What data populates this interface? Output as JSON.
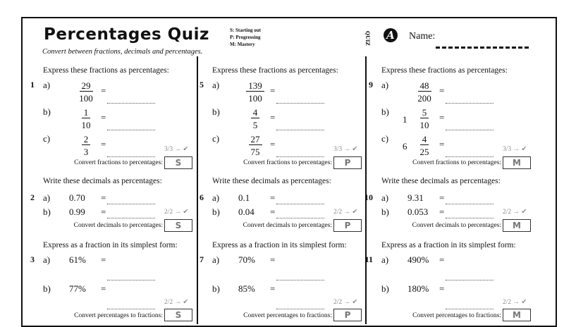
{
  "title": "Percentages Quiz",
  "subtitle": "Convert between fractions, decimals and percentages.",
  "levels": [
    "S: Starting out",
    "P: Progressing",
    "M: Mastery"
  ],
  "logo": {
    "quiz_text": "QUIZ",
    "letter": "A"
  },
  "name_label": "Name:",
  "section_headings": [
    "Express these fractions as percentages:",
    "Write these decimals as percentages:",
    "Express as a fraction in its simplest form:"
  ],
  "section_labels": [
    "Convert fractions to percentages:",
    "Convert decimals to percentages:",
    "Convert percentages to fractions:"
  ],
  "equals": "=",
  "parts": [
    "a)",
    "b)",
    "c)"
  ],
  "columns": [
    {
      "level": "S",
      "numbers": [
        "1",
        "2",
        "3"
      ],
      "fractions": [
        {
          "whole": "",
          "num": "29",
          "den": "100"
        },
        {
          "whole": "",
          "num": "1",
          "den": "10"
        },
        {
          "whole": "",
          "num": "2",
          "den": "3"
        }
      ],
      "decimals": [
        "0.70",
        "0.99"
      ],
      "percents": [
        "61%",
        "77%"
      ],
      "scores": [
        "3/3 → ✔",
        "2/2 → ✔",
        "2/2 → ✔"
      ]
    },
    {
      "level": "P",
      "numbers": [
        "5",
        "6",
        "7"
      ],
      "fractions": [
        {
          "whole": "",
          "num": "139",
          "den": "100"
        },
        {
          "whole": "",
          "num": "4",
          "den": "5"
        },
        {
          "whole": "",
          "num": "27",
          "den": "75"
        }
      ],
      "decimals": [
        "0.1",
        "0.04"
      ],
      "percents": [
        "70%",
        "85%"
      ],
      "scores": [
        "3/3 → ✔",
        "2/2 → ✔",
        "2/2 → ✔"
      ]
    },
    {
      "level": "M",
      "numbers": [
        "9",
        "10",
        "11"
      ],
      "fractions": [
        {
          "whole": "",
          "num": "48",
          "den": "200"
        },
        {
          "whole": "1",
          "num": "5",
          "den": "10"
        },
        {
          "whole": "6",
          "num": "4",
          "den": "25"
        }
      ],
      "decimals": [
        "9.31",
        "0.053"
      ],
      "percents": [
        "490%",
        "180%"
      ],
      "scores": [
        "3/3 → ✔",
        "2/2 → ✔",
        "2/2 → ✔"
      ]
    }
  ]
}
